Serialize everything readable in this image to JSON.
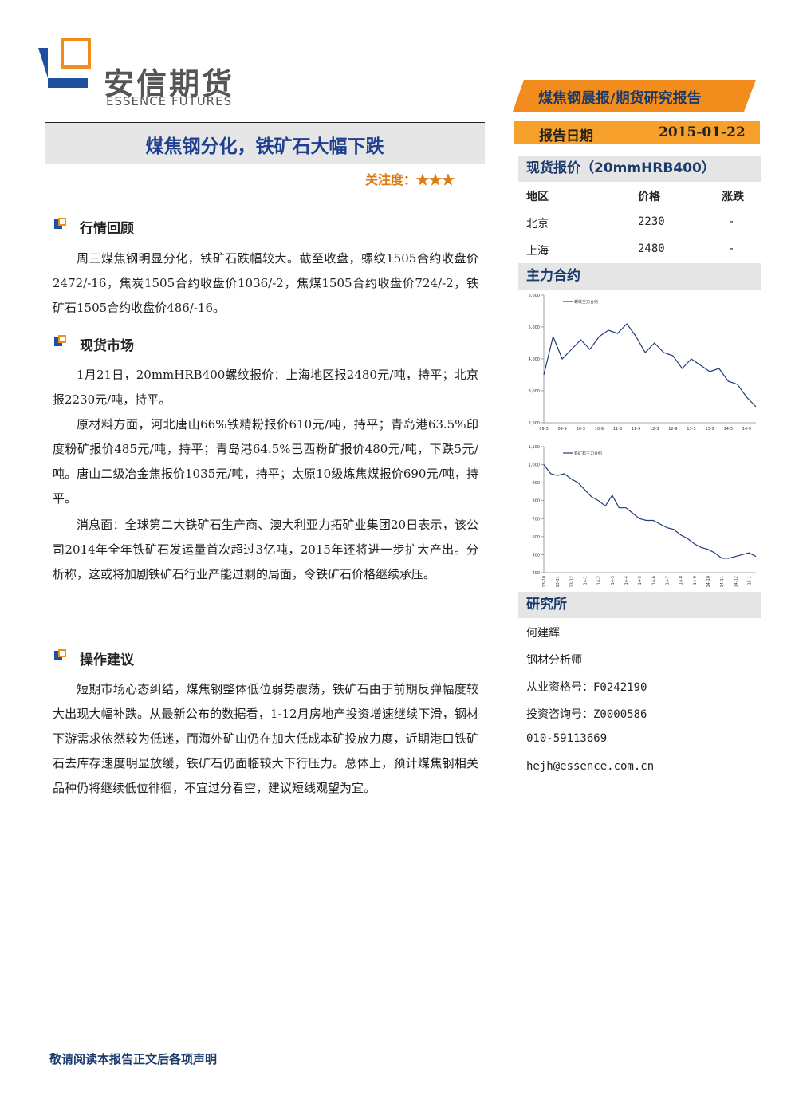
{
  "header": {
    "company": "安信期货",
    "company_en": "ESSENCE FUTURES",
    "report_type": "煤焦钢晨报/期货研究报告",
    "date_label": "报告日期",
    "date": "2015-01-22"
  },
  "title": "煤焦钢分化，铁矿石大幅下跌",
  "attention": "关注度：★★★",
  "sections": [
    {
      "heading": "行情回顾",
      "paragraphs": [
        "周三煤焦钢明显分化，铁矿石跌幅较大。截至收盘，螺纹1505合约收盘价2472/-16，焦炭1505合约收盘价1036/-2，焦煤1505合约收盘价724/-2，铁矿石1505合约收盘价486/-16。"
      ]
    },
    {
      "heading": "现货市场",
      "paragraphs": [
        "1月21日，20mmHRB400螺纹报价：上海地区报2480元/吨，持平；北京报2230元/吨，持平。",
        "原材料方面，河北唐山66%铁精粉报价610元/吨，持平；青岛港63.5%印度粉矿报价485元/吨，持平；青岛港64.5%巴西粉矿报价480元/吨，下跌5元/吨。唐山二级冶金焦报价1035元/吨，持平；太原10级炼焦煤报价690元/吨，持平。",
        "消息面：全球第二大铁矿石生产商、澳大利亚力拓矿业集团20日表示，该公司2014年全年铁矿石发运量首次超过3亿吨，2015年还将进一步扩大产出。分析称，这或将加剧铁矿石行业产能过剩的局面，令铁矿石价格继续承压。"
      ]
    },
    {
      "heading": "操作建议",
      "paragraphs": [
        "短期市场心态纠结，煤焦钢整体低位弱势震荡，铁矿石由于前期反弹幅度较大出现大幅补跌。从最新公布的数据看，1-12月房地产投资增速继续下滑，钢材下游需求依然较为低迷，而海外矿山仍在加大低成本矿投放力度，近期港口铁矿石去库存速度明显放缓，铁矿石仍面临较大下行压力。总体上，预计煤焦钢相关品种仍将继续低位徘徊，不宜过分看空，建议短线观望为宜。"
      ]
    }
  ],
  "spot": {
    "heading": "现货报价（20mmHRB400）",
    "columns": [
      "地区",
      "价格",
      "涨跌"
    ],
    "rows": [
      [
        "北京",
        "2230",
        "-"
      ],
      [
        "上海",
        "2480",
        "-"
      ]
    ]
  },
  "main_contract_heading": "主力合约",
  "chart_data": [
    {
      "type": "line",
      "categories": [
        "09-3",
        null,
        "09-9",
        null,
        "10-3",
        null,
        "10-9",
        null,
        "11-3",
        null,
        "11-9",
        null,
        "12-3",
        null,
        "12-9",
        null,
        "13-3",
        null,
        "13-9",
        null,
        "14-3",
        null,
        "14-9",
        null
      ],
      "series": [
        {
          "name": "螺纹主力合约",
          "color": "#1f3a7a",
          "values": [
            3500,
            4700,
            4000,
            4300,
            4600,
            4300,
            4700,
            4900,
            4800,
            5100,
            4700,
            4200,
            4500,
            4200,
            4100,
            3700,
            4000,
            3800,
            3600,
            3700,
            3300,
            3200,
            2800,
            2500
          ]
        }
      ],
      "ylim": [
        2000,
        6000
      ],
      "yticks": [
        {
          "value": 2000,
          "label": "2,000"
        },
        {
          "value": 3000,
          "label": "3,000"
        },
        {
          "value": 4000,
          "label": "4,000"
        },
        {
          "value": 5000,
          "label": "5,000"
        },
        {
          "value": 6000,
          "label": "6,000"
        }
      ],
      "grid": false,
      "x_label_rotation": 0
    },
    {
      "type": "line",
      "categories": [
        "13-10",
        null,
        "13-11",
        null,
        "13-12",
        null,
        "14-1",
        null,
        "14-2",
        null,
        "14-3",
        null,
        "14-4",
        null,
        "14-5",
        null,
        "14-6",
        null,
        "14-7",
        null,
        "14-8",
        null,
        "14-9",
        null,
        "14-10",
        null,
        "14-11",
        null,
        "14-12",
        null,
        "15-1",
        null
      ],
      "series": [
        {
          "name": "铁矿石主力合约",
          "color": "#1f3a7a",
          "values": [
            1000,
            950,
            940,
            950,
            920,
            900,
            860,
            820,
            800,
            770,
            830,
            760,
            760,
            730,
            700,
            690,
            690,
            670,
            650,
            640,
            610,
            590,
            560,
            540,
            530,
            510,
            480,
            480,
            490,
            500,
            510,
            490
          ]
        }
      ],
      "ylim": [
        400,
        1100
      ],
      "yticks": [
        400,
        500,
        600,
        700,
        800,
        900,
        {
          "value": 1000,
          "label": "1,000"
        },
        {
          "value": 1100,
          "label": "1,100"
        }
      ],
      "grid": false,
      "x_label_rotation": -90
    }
  ],
  "research": {
    "heading": "研究所",
    "lines": [
      "何建辉",
      "钢材分析师",
      "从业资格号：F0242190",
      "投资咨询号：Z0000586",
      "010-59113669",
      "hejh@essence.com.cn"
    ]
  },
  "footer": "敬请阅读本报告正文后各项声明"
}
